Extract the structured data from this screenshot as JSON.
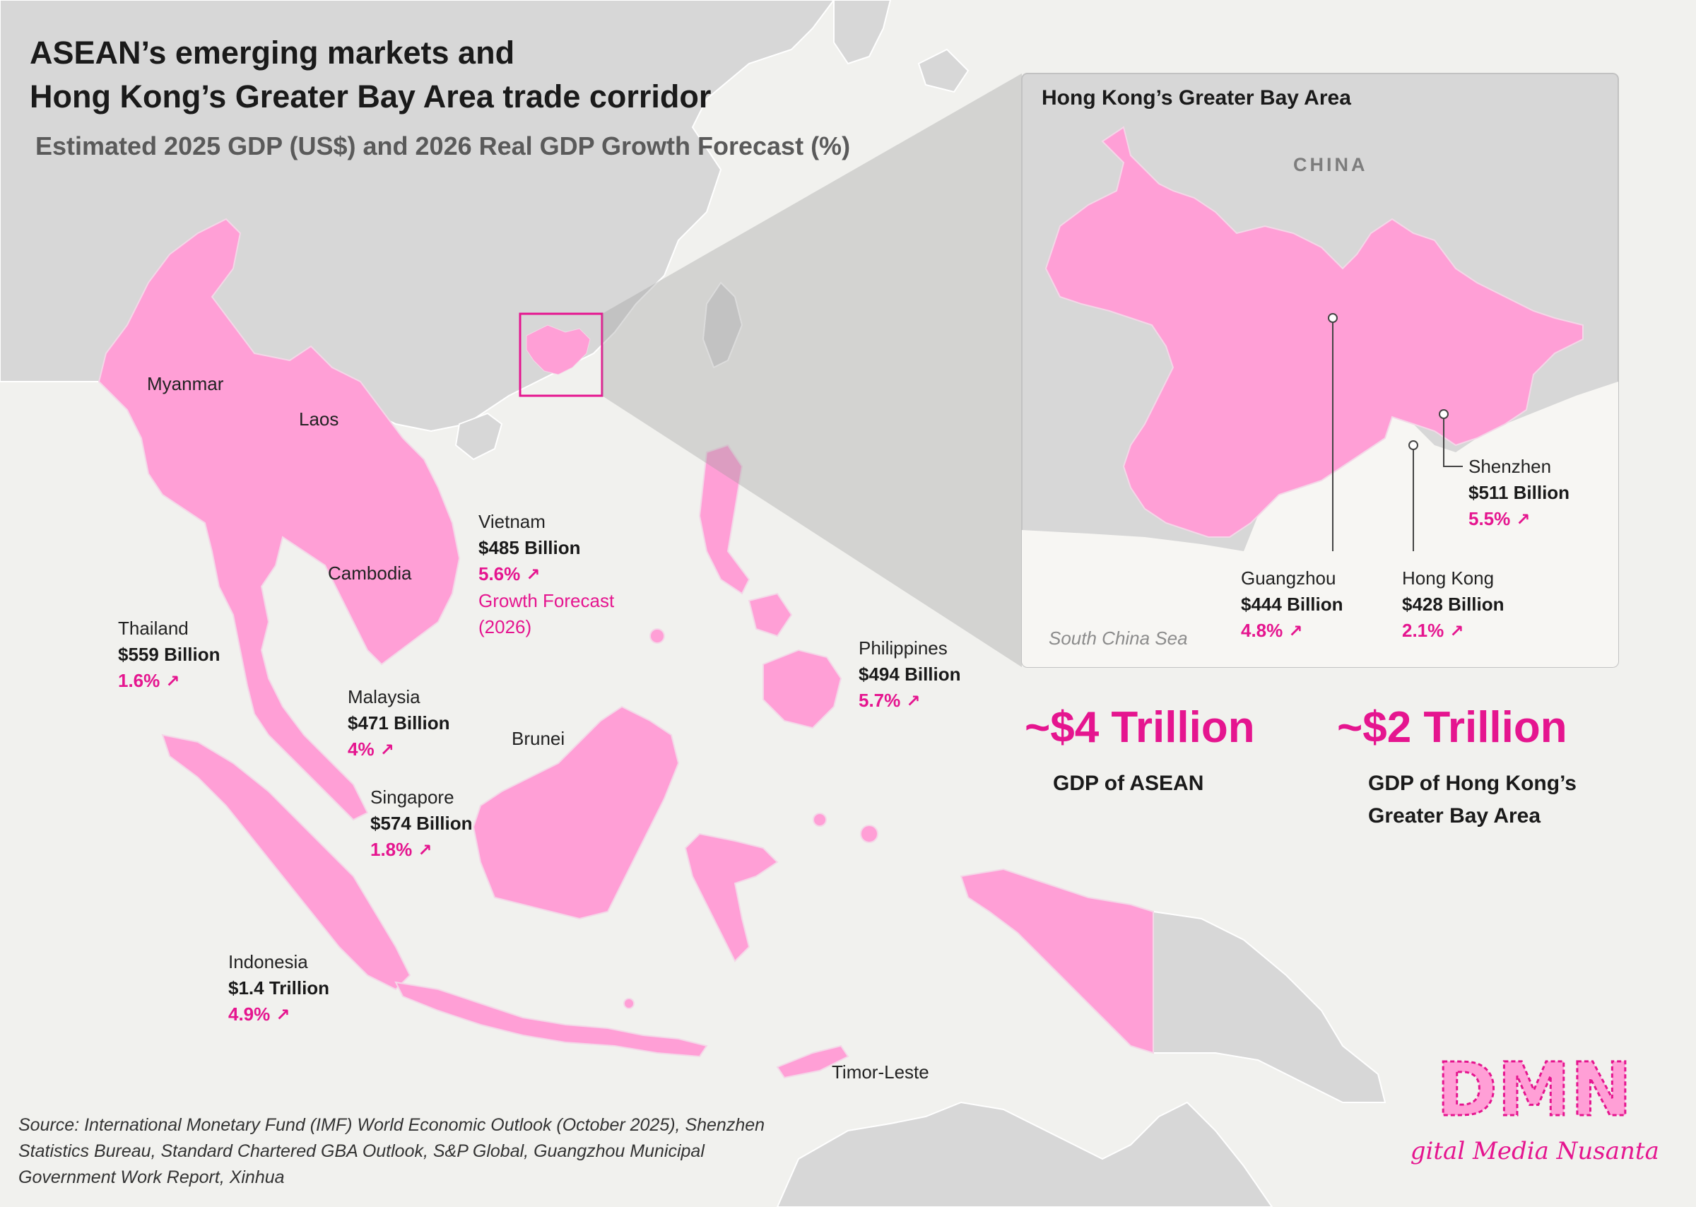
{
  "title": {
    "line1": "ASEAN’s emerging markets and",
    "line2": "Hong Kong’s Greater Bay Area trade corridor"
  },
  "subtitle": "Estimated 2025 GDP (US$) and 2026 Real GDP Growth Forecast (%)",
  "colors": {
    "asean": "#ff9fd6",
    "accent": "#e5158f",
    "land": "#d7d7d7",
    "sea": "#f1f1ee"
  },
  "countries": {
    "myanmar": {
      "name": "Myanmar"
    },
    "laos": {
      "name": "Laos"
    },
    "cambodia": {
      "name": "Cambodia"
    },
    "brunei": {
      "name": "Brunei"
    },
    "timor": {
      "name": "Timor-Leste"
    },
    "vietnam": {
      "name": "Vietnam",
      "gdp": "$485 Billion",
      "growth": "5.6%",
      "note1": "Growth Forecast",
      "note2": "(2026)"
    },
    "thailand": {
      "name": "Thailand",
      "gdp": "$559 Billion",
      "growth": "1.6%"
    },
    "philippines": {
      "name": "Philippines",
      "gdp": "$494 Billion",
      "growth": "5.7%"
    },
    "malaysia": {
      "name": "Malaysia",
      "gdp": "$471 Billion",
      "growth": "4%"
    },
    "singapore": {
      "name": "Singapore",
      "gdp": "$574 Billion",
      "growth": "1.8%"
    },
    "indonesia": {
      "name": "Indonesia",
      "gdp": "$1.4 Trillion",
      "growth": "4.9%"
    }
  },
  "inset": {
    "title": "Hong Kong’s Greater Bay Area",
    "country_label": "CHINA",
    "sea_label": "South China Sea",
    "cities": {
      "shenzhen": {
        "name": "Shenzhen",
        "gdp": "$511 Billion",
        "growth": "5.5%"
      },
      "guangzhou": {
        "name": "Guangzhou",
        "gdp": "$444 Billion",
        "growth": "4.8%"
      },
      "hongkong": {
        "name": "Hong Kong",
        "gdp": "$428 Billion",
        "growth": "2.1%"
      }
    }
  },
  "totals": {
    "asean": {
      "value": "~$4 Trillion",
      "label": "GDP of ASEAN"
    },
    "gba": {
      "value": "~$2 Trillion",
      "label_line1": "GDP of Hong Kong’s",
      "label_line2": "Greater Bay Area"
    }
  },
  "source": "Source: International Monetary Fund (IMF) World Economic Outlook (October 2025), Shenzhen Statistics Bureau, Standard Chartered GBA Outlook, S&P Global, Guangzhou Municipal Government Work Report, Xinhua",
  "logo": {
    "initials": "DMN",
    "name": "Digital Media Nusantara"
  }
}
